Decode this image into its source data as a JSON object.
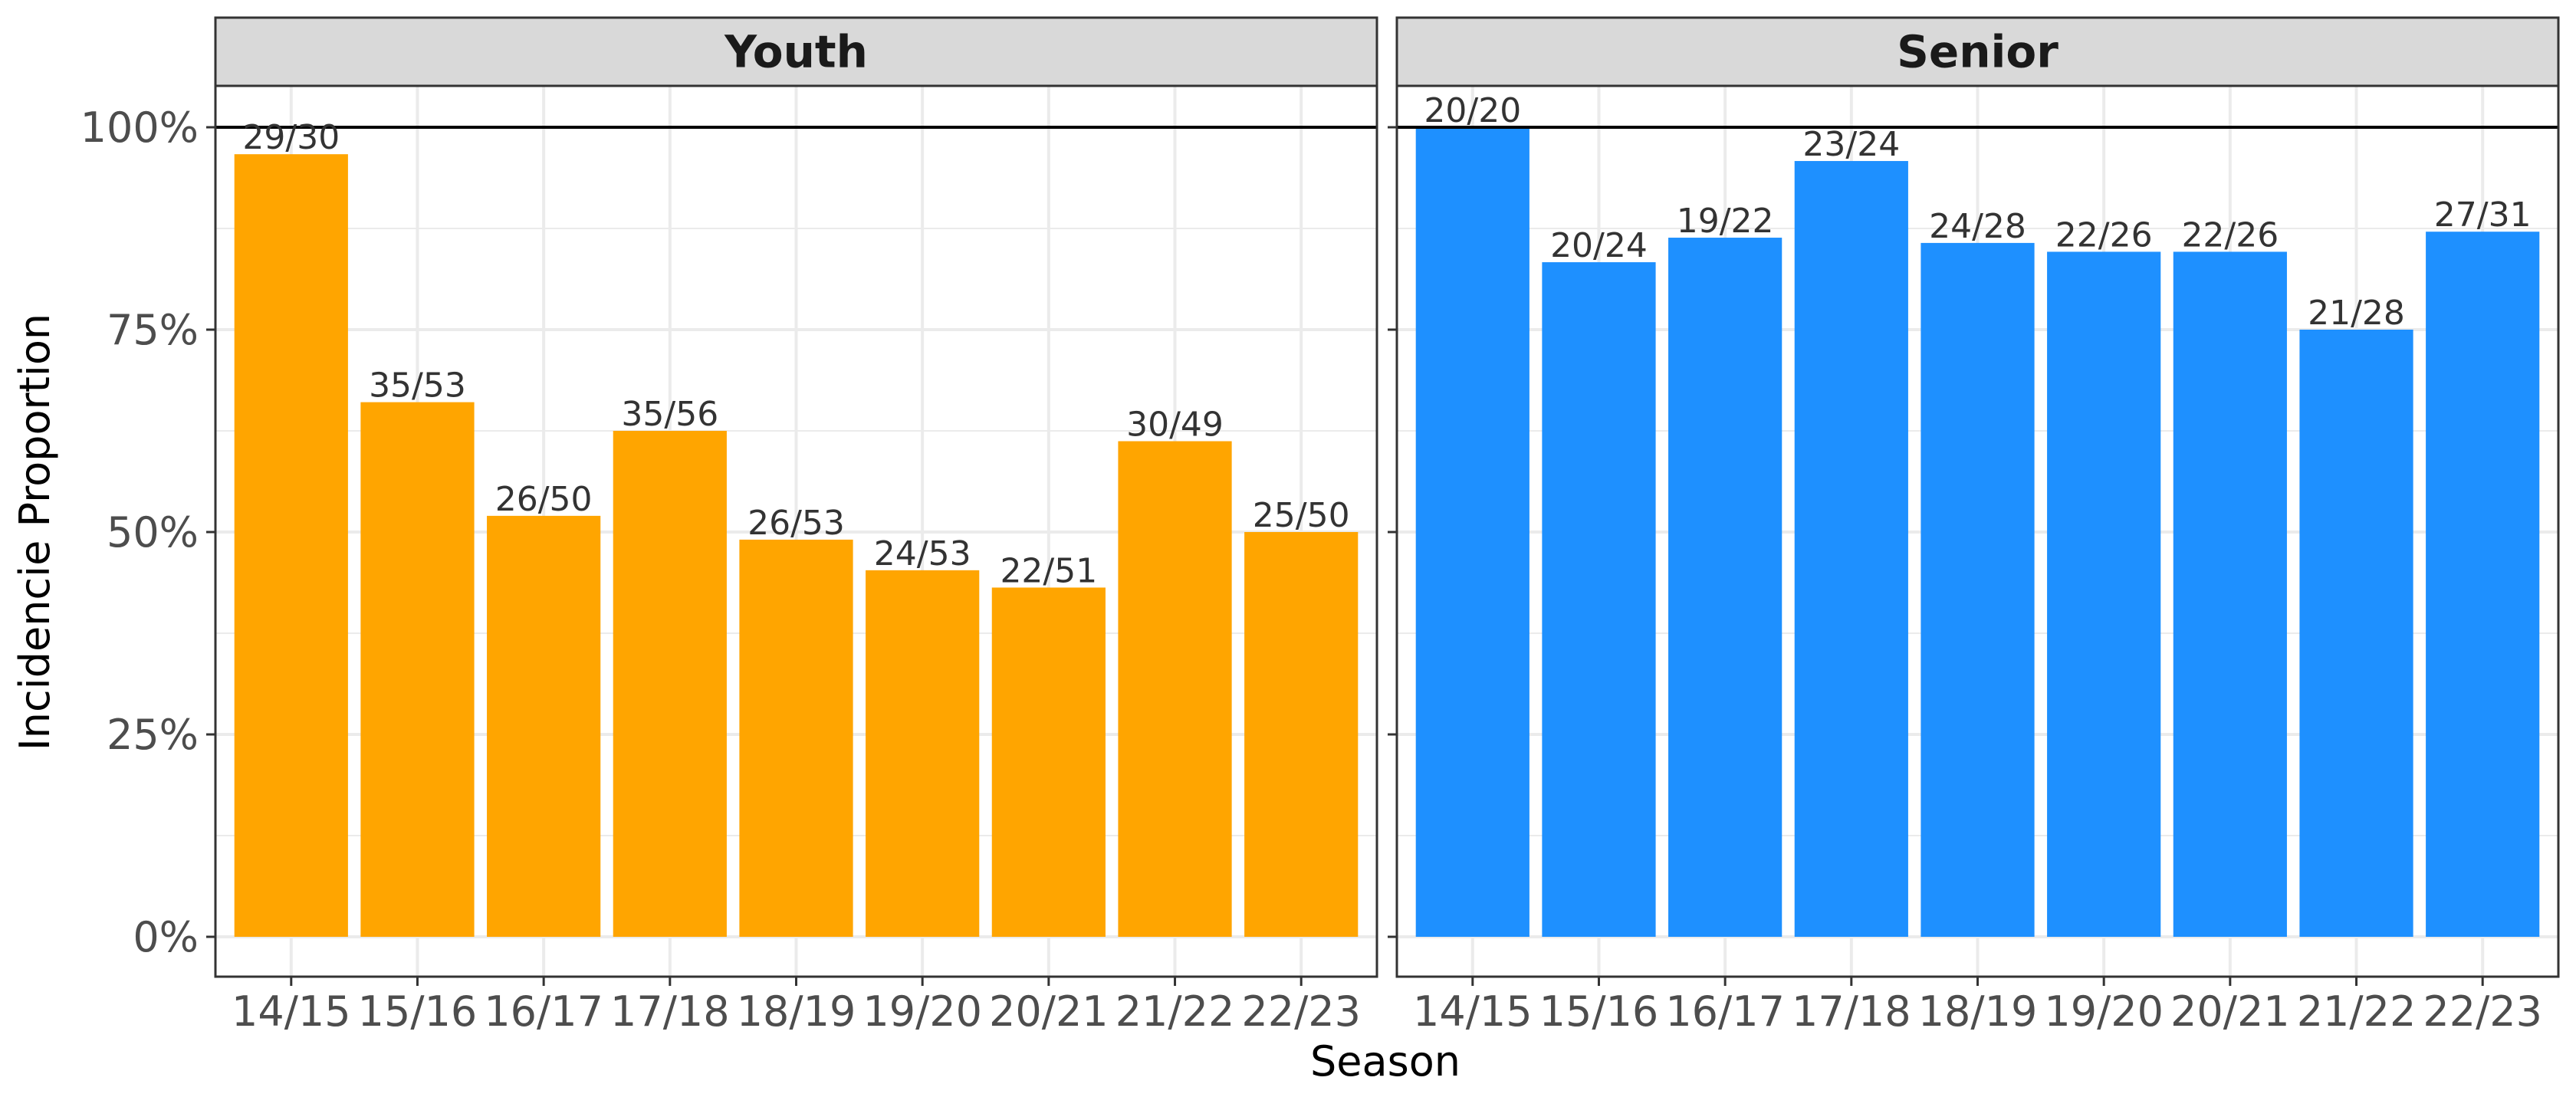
{
  "chart_data": {
    "type": "bar",
    "xlabel": "Season",
    "ylabel": "Incidencie Proportion",
    "ylim": [
      0,
      1.05
    ],
    "yticks": [
      0,
      0.25,
      0.5,
      0.75,
      1.0
    ],
    "ytick_labels": [
      "0%",
      "25%",
      "50%",
      "75%",
      "100%"
    ],
    "reference_line": 1.0,
    "grid": true,
    "categories": [
      "14/15",
      "15/16",
      "16/17",
      "17/18",
      "18/19",
      "19/20",
      "20/21",
      "21/22",
      "22/23"
    ],
    "panels": [
      {
        "name": "Youth",
        "color": "#FFA500",
        "labels": [
          "29/30",
          "35/53",
          "26/50",
          "35/56",
          "26/53",
          "24/53",
          "22/51",
          "30/49",
          "25/50"
        ],
        "values": [
          0.9667,
          0.6604,
          0.52,
          0.625,
          0.4906,
          0.4528,
          0.4314,
          0.6122,
          0.5
        ]
      },
      {
        "name": "Senior",
        "color": "#1E90FF",
        "labels": [
          "20/20",
          "20/24",
          "19/22",
          "23/24",
          "24/28",
          "22/26",
          "22/26",
          "21/28",
          "27/31"
        ],
        "values": [
          1.0,
          0.8333,
          0.8636,
          0.9583,
          0.8571,
          0.8462,
          0.8462,
          0.75,
          0.871
        ]
      }
    ]
  }
}
